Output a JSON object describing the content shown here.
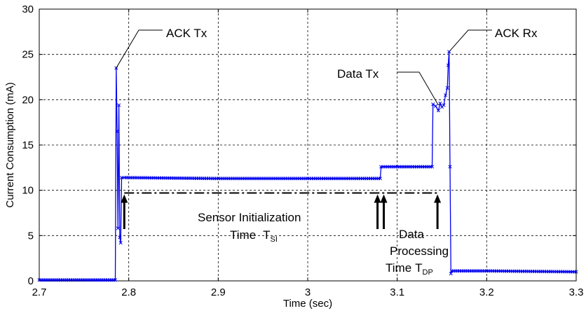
{
  "chart_data": {
    "type": "line",
    "title": "",
    "xlabel": "Time (sec)",
    "ylabel": "Current Consumption (mA)",
    "xlim": [
      2.7,
      3.3
    ],
    "ylim": [
      0,
      30
    ],
    "xticks": [
      2.7,
      2.8,
      2.9,
      3.0,
      3.1,
      3.2,
      3.3
    ],
    "xtick_labels": [
      "2.7",
      "2.8",
      "2.9",
      "3",
      "3.1",
      "3.2",
      "3.3"
    ],
    "yticks": [
      0,
      5,
      10,
      15,
      20,
      25,
      30
    ],
    "ytick_labels": [
      "0",
      "5",
      "10",
      "15",
      "20",
      "25",
      "30"
    ],
    "grid": true,
    "series_color": "#0000ee",
    "series": [
      {
        "name": "",
        "x": [
          2.7,
          2.785,
          2.786,
          2.787,
          2.788,
          2.789,
          2.79,
          2.791,
          2.792,
          2.795,
          2.9,
          3.0,
          3.081,
          3.082,
          3.1,
          3.139,
          3.14,
          3.143,
          3.146,
          3.148,
          3.15,
          3.152,
          3.154,
          3.156,
          3.157,
          3.158,
          3.159,
          3.16,
          3.161,
          3.2,
          3.3
        ],
        "y": [
          0.1,
          0.1,
          23.5,
          16.5,
          5.8,
          19.4,
          4.8,
          4.2,
          11.4,
          11.4,
          11.3,
          11.3,
          11.3,
          12.6,
          12.6,
          12.6,
          19.5,
          19.3,
          18.8,
          19.6,
          19.2,
          19.4,
          20.5,
          21.3,
          23.8,
          25.3,
          12.6,
          0.8,
          1.1,
          1.1,
          1.0
        ]
      }
    ],
    "annotations": {
      "ack_tx": "ACK Tx",
      "ack_rx": "ACK Rx",
      "data_tx": "Data Tx",
      "sensor_line1": "Sensor Initialization",
      "sensor_line2": "Time",
      "sensor_sym": "T",
      "sensor_sub": "SI",
      "dp_line1": "Data",
      "dp_line2": "Processing",
      "dp_line3": "Time",
      "dp_sym": "T",
      "dp_sub": "DP"
    },
    "dashed_level": 9.7,
    "arrows_x": [
      2.795,
      3.078,
      3.085,
      3.145
    ]
  }
}
